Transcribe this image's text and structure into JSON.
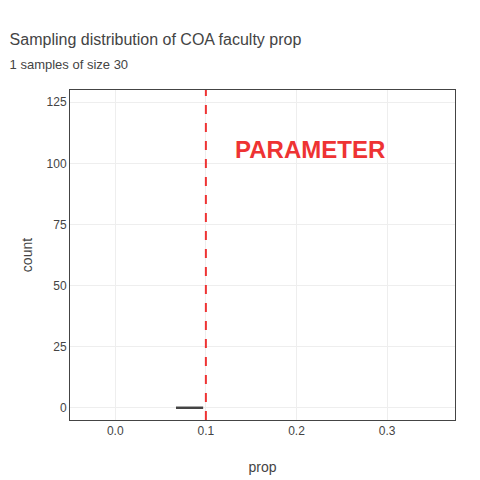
{
  "chart_data": {
    "type": "line",
    "title": "Sampling distribution of COA faculty prop",
    "subtitle": "1 samples of size 30",
    "xlabel": "prop",
    "ylabel": "count",
    "x": [
      0.067,
      0.097
    ],
    "values": [
      0,
      0
    ],
    "color": "#444444",
    "xlim": [
      -0.05,
      0.375
    ],
    "ylim": [
      -5,
      130
    ],
    "xticks": [
      {
        "value": 0.0,
        "label": "0.0"
      },
      0.1,
      0.2,
      0.3
    ],
    "yticks": [
      0,
      25,
      50,
      75,
      100,
      125
    ],
    "grid": true,
    "vline": {
      "x": 0.1,
      "color": "#EE3333",
      "line_style": "dashed"
    },
    "annotations": [
      {
        "text": "PARAMETER",
        "x": 0.13,
        "y": 112,
        "color": "#EE3333"
      }
    ]
  }
}
